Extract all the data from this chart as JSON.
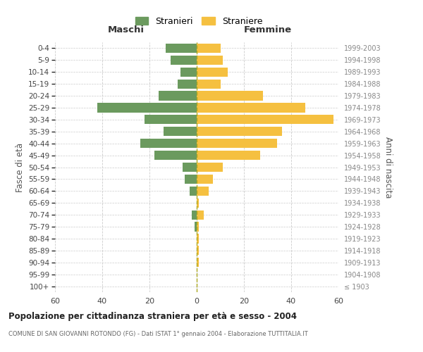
{
  "age_groups": [
    "100+",
    "95-99",
    "90-94",
    "85-89",
    "80-84",
    "75-79",
    "70-74",
    "65-69",
    "60-64",
    "55-59",
    "50-54",
    "45-49",
    "40-44",
    "35-39",
    "30-34",
    "25-29",
    "20-24",
    "15-19",
    "10-14",
    "5-9",
    "0-4"
  ],
  "birth_years": [
    "≤ 1903",
    "1904-1908",
    "1909-1913",
    "1914-1918",
    "1919-1923",
    "1924-1928",
    "1929-1933",
    "1934-1938",
    "1939-1943",
    "1944-1948",
    "1949-1953",
    "1954-1958",
    "1959-1963",
    "1964-1968",
    "1969-1973",
    "1974-1978",
    "1979-1983",
    "1984-1988",
    "1989-1993",
    "1994-1998",
    "1999-2003"
  ],
  "maschi": [
    0,
    0,
    0,
    0,
    0,
    1,
    2,
    0,
    3,
    5,
    6,
    18,
    24,
    14,
    22,
    42,
    16,
    8,
    7,
    11,
    13
  ],
  "femmine": [
    0,
    0,
    1,
    1,
    1,
    1,
    3,
    1,
    5,
    7,
    11,
    27,
    34,
    36,
    58,
    46,
    28,
    10,
    13,
    11,
    10
  ],
  "maschi_color": "#6b9a5e",
  "femmine_color": "#f5c040",
  "background_color": "#ffffff",
  "grid_color": "#cccccc",
  "title": "Popolazione per cittadinanza straniera per età e sesso - 2004",
  "subtitle": "COMUNE DI SAN GIOVANNI ROTONDO (FG) - Dati ISTAT 1° gennaio 2004 - Elaborazione TUTTITALIA.IT",
  "xlabel_left": "Maschi",
  "xlabel_right": "Femmine",
  "ylabel_left": "Fasce di età",
  "ylabel_right": "Anni di nascita",
  "legend_stranieri": "Stranieri",
  "legend_straniere": "Straniere",
  "xlim": 60,
  "tick_interval": 20
}
